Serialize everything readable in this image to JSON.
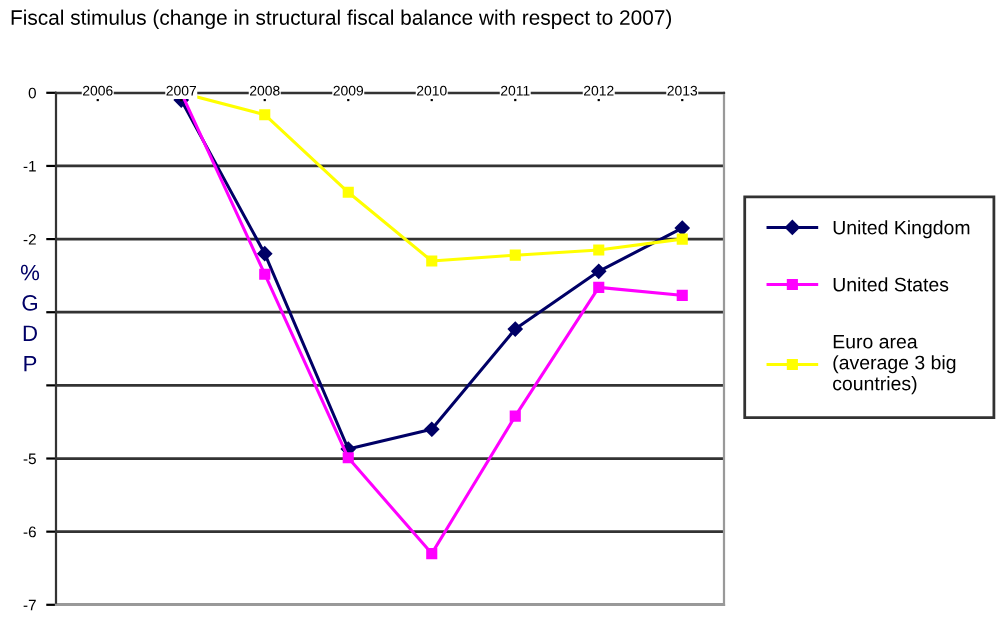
{
  "chart_data": {
    "type": "line",
    "title": "Fiscal stimulus (change in structural fiscal balance with respect to 2007)",
    "ylabel": "% GDP",
    "categories": [
      "2006",
      "2007",
      "2008",
      "2009",
      "2010",
      "2011",
      "2012",
      "2013"
    ],
    "series": [
      {
        "name": "United Kingdom",
        "color": "#000066",
        "marker": "diamond",
        "values": [
          null,
          -0.1,
          -2.2,
          -4.87,
          -4.6,
          -3.23,
          -2.44,
          -1.85
        ]
      },
      {
        "name": "United States",
        "color": "#ff00ff",
        "marker": "square",
        "values": [
          null,
          0,
          -2.48,
          -4.99,
          -6.3,
          -4.42,
          -2.66,
          -2.77
        ]
      },
      {
        "name": "Euro area (average 3 big countries)",
        "color": "#ffff00",
        "marker": "square",
        "values": [
          null,
          0,
          -0.3,
          -1.36,
          -2.3,
          -2.22,
          -2.15,
          -2.0
        ]
      }
    ],
    "ylim": [
      -7,
      0
    ],
    "yticks": [
      0,
      -1,
      -2,
      {
        "value": -3,
        "label": null
      },
      {
        "value": -4,
        "label": null
      },
      -5,
      -6,
      -7
    ],
    "grid": "y",
    "legend": "right"
  }
}
